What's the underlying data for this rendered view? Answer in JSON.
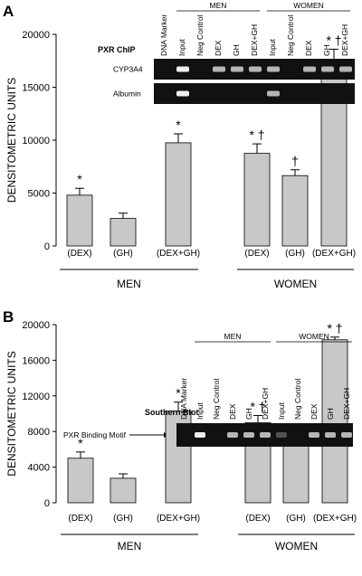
{
  "chart_data": [
    {
      "type": "bar",
      "panel": "A",
      "y_label": "DENSITOMETRIC UNITS",
      "categories": [
        "(DEX)",
        "(GH)",
        "(DEX+GH)",
        "(DEX)",
        "(GH)",
        "(DEX+GH)"
      ],
      "groups": [
        "MEN",
        "WOMEN"
      ],
      "values": [
        4800,
        2600,
        9750,
        8750,
        6650,
        17300
      ],
      "errors": [
        650,
        500,
        850,
        900,
        550,
        1300
      ],
      "annotations": [
        "*",
        null,
        "*",
        "* †",
        "†",
        "* †"
      ],
      "color": "#c8c8c8",
      "ylim": [
        0,
        20000
      ],
      "yticks": [
        0,
        5000,
        10000,
        15000,
        20000
      ],
      "inset": {
        "title": "PXR ChIP",
        "groups": [
          "MEN",
          "WOMEN"
        ],
        "lanes": [
          "DNA Marker",
          "Input",
          "Neg Control",
          "DEX",
          "GH",
          "DEX+GH",
          "Input",
          "Neg Control",
          "DEX",
          "GH",
          "DEX+GH"
        ],
        "rows": [
          "CYP3A4",
          "Albumin"
        ]
      }
    },
    {
      "type": "bar",
      "panel": "B",
      "y_label": "DENSITOMETRIC UNITS",
      "categories": [
        "(DEX)",
        "(GH)",
        "(DEX+GH)",
        "(DEX)",
        "(GH)",
        "(DEX+GH)"
      ],
      "groups": [
        "MEN",
        "WOMEN"
      ],
      "values": [
        5000,
        2750,
        10300,
        9000,
        6500,
        18300
      ],
      "errors": [
        700,
        500,
        1000,
        800,
        400,
        300
      ],
      "annotations": [
        "*",
        null,
        "*",
        "* †",
        "†",
        "* †"
      ],
      "color": "#c8c8c8",
      "ylim": [
        0,
        20000
      ],
      "yticks": [
        0,
        4000,
        8000,
        12000,
        16000,
        20000
      ],
      "inset": {
        "title": "Southern Blot",
        "groups": [
          "MEN",
          "WOMEN"
        ],
        "lanes": [
          "DNA Marker",
          "Input",
          "Neg Control",
          "DEX",
          "GH",
          "DEX+GH",
          "Input",
          "Neg Control",
          "DEX",
          "GH",
          "DEX+GH"
        ],
        "rows": [
          "PXR Binding Motif"
        ]
      }
    }
  ]
}
